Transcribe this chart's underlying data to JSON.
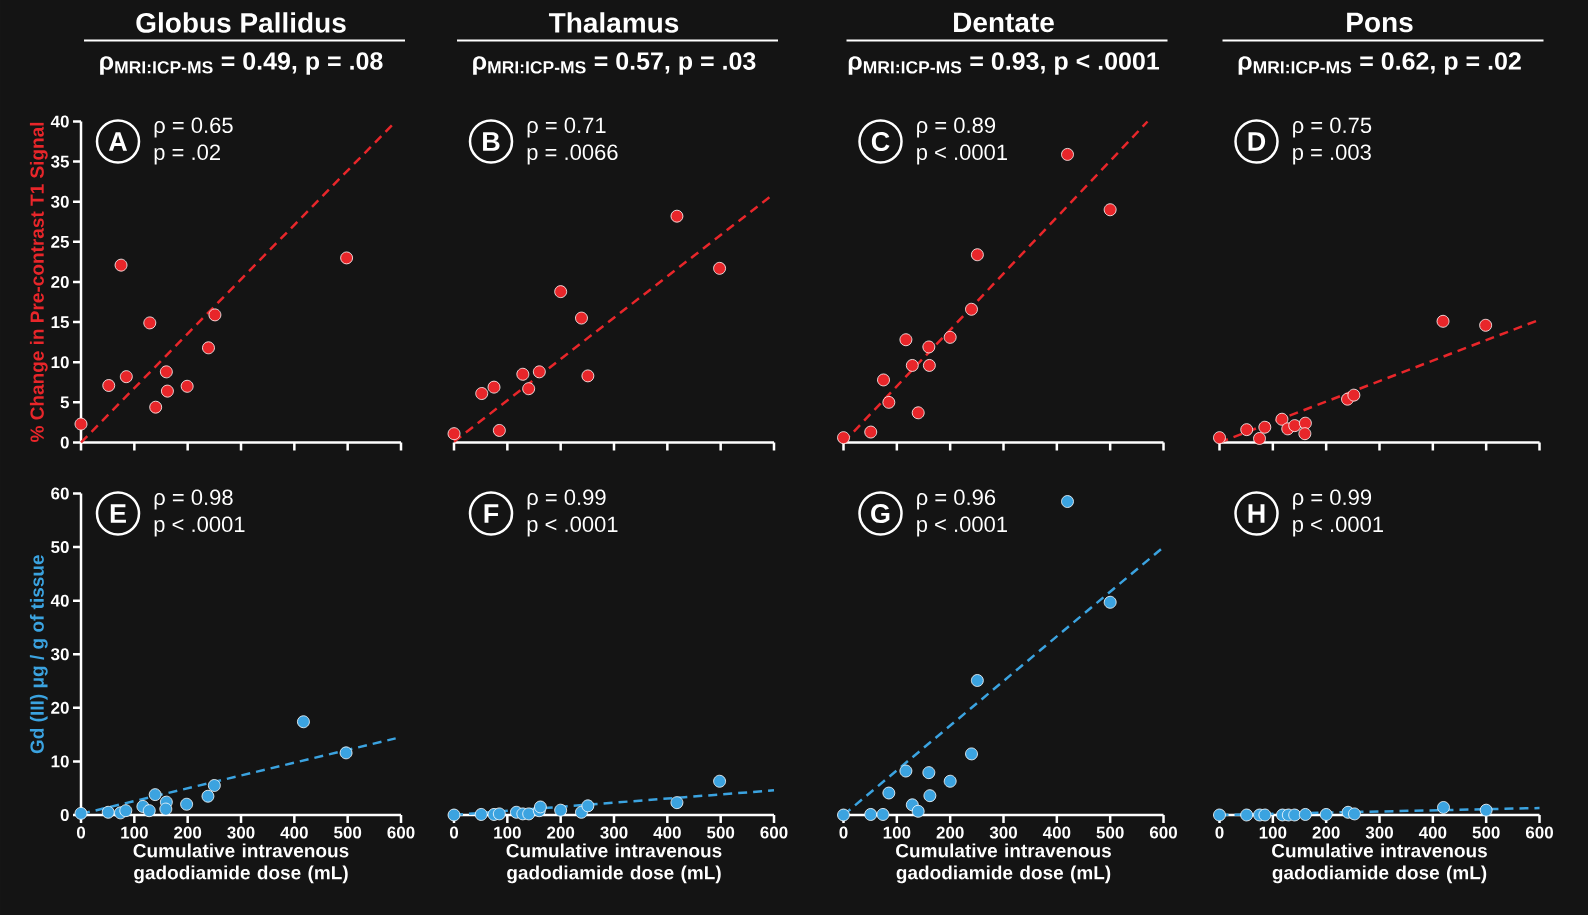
{
  "chart_data": [
    {
      "type": "scatter",
      "title": "Globus Pallidus",
      "subtitle": "ρ$_{MRI:ICP-MS}$ = 0.49, p = .08",
      "ylabel": "% Change in Pre-contrast T1 Signal",
      "annotations": [
        "A",
        "ρ = 0.65",
        "p = .02"
      ],
      "xlim": [
        0,
        600
      ],
      "ylim": [
        0,
        40
      ],
      "xticks": [
        0,
        100,
        200,
        300,
        400,
        500,
        600
      ],
      "yticks": [
        0,
        5,
        10,
        15,
        20,
        25,
        30,
        35,
        40
      ],
      "tick_labels": "y",
      "series": [
        {
          "type": "scatter",
          "marker": "circle",
          "color": "#e8262a",
          "x": [
            0,
            52,
            75,
            85,
            129,
            140,
            160,
            162,
            199,
            239,
            251,
            498
          ],
          "values": [
            2.3,
            7.1,
            22.1,
            8.2,
            14.9,
            4.4,
            8.8,
            6.4,
            7.0,
            11.8,
            15.9,
            23.0
          ]
        },
        {
          "type": "line",
          "line_style": "dashed",
          "color": "#e8262a",
          "x": [
            0,
            590
          ],
          "values": [
            0,
            40
          ]
        }
      ]
    },
    {
      "type": "scatter",
      "title": "Thalamus",
      "subtitle": "ρ$_{MRI:ICP-MS}$ = 0.57, p = .03",
      "annotations": [
        "B",
        "ρ = 0.71",
        "p = .0066"
      ],
      "xlim": [
        0,
        600
      ],
      "ylim": [
        0,
        40
      ],
      "xticks": [
        0,
        100,
        200,
        300,
        400,
        500,
        600
      ],
      "tick_labels": false,
      "series": [
        {
          "type": "scatter",
          "marker": "circle",
          "color": "#e8262a",
          "x": [
            0,
            52,
            75,
            85,
            129,
            140,
            160,
            200,
            239,
            251,
            418,
            498
          ],
          "values": [
            1.1,
            6.1,
            6.9,
            1.5,
            8.5,
            6.7,
            8.8,
            18.8,
            15.5,
            8.3,
            28.2,
            21.7
          ]
        },
        {
          "type": "line",
          "line_style": "dashed",
          "color": "#e8262a",
          "x": [
            0,
            600
          ],
          "values": [
            0.1,
            31
          ]
        }
      ]
    },
    {
      "type": "scatter",
      "title": "Dentate",
      "subtitle": "ρ$_{MRI:ICP-MS}$ = 0.93, p < .0001",
      "annotations": [
        "C",
        "ρ = 0.89",
        "p < .0001"
      ],
      "xlim": [
        0,
        600
      ],
      "ylim": [
        0,
        40
      ],
      "xticks": [
        0,
        100,
        200,
        300,
        400,
        500,
        600
      ],
      "tick_labels": false,
      "series": [
        {
          "type": "scatter",
          "marker": "circle",
          "color": "#e8262a",
          "x": [
            0,
            51,
            75,
            85,
            117,
            129,
            140,
            160,
            161,
            200,
            240,
            251,
            420,
            500
          ],
          "values": [
            0.6,
            1.3,
            7.8,
            5.0,
            12.8,
            9.6,
            3.7,
            11.9,
            9.6,
            13.1,
            16.6,
            23.4,
            35.9,
            29.0
          ]
        },
        {
          "type": "line",
          "line_style": "dashed",
          "color": "#e8262a",
          "x": [
            0,
            570
          ],
          "values": [
            0,
            40
          ]
        }
      ]
    },
    {
      "type": "scatter",
      "title": "Pons",
      "subtitle": "ρ$_{MRI:ICP-MS}$ = 0.62, p = .02",
      "annotations": [
        "D",
        "ρ = 0.75",
        "p = .003"
      ],
      "xlim": [
        0,
        600
      ],
      "ylim": [
        0,
        40
      ],
      "xticks": [
        0,
        100,
        200,
        300,
        400,
        500,
        600
      ],
      "tick_labels": false,
      "series": [
        {
          "type": "scatter",
          "marker": "circle",
          "color": "#e8262a",
          "x": [
            0,
            51,
            75,
            85,
            117,
            128,
            141,
            161,
            160,
            240,
            252,
            419,
            499
          ],
          "values": [
            0.6,
            1.6,
            0.5,
            1.9,
            2.9,
            1.7,
            2.1,
            2.4,
            1.1,
            5.4,
            5.9,
            15.1,
            14.6
          ]
        },
        {
          "type": "line",
          "line_style": "dashed",
          "color": "#e8262a",
          "x": [
            0,
            600
          ],
          "values": [
            0,
            15.3
          ]
        }
      ]
    },
    {
      "type": "scatter",
      "xlabel": "Cumulative intravenous gadodiamide dose (mL)",
      "ylabel": "Gd (III) μg / g of tissue",
      "annotations": [
        "E",
        "ρ = 0.98",
        "p < .0001"
      ],
      "xlim": [
        0,
        600
      ],
      "ylim": [
        0,
        60
      ],
      "xticks": [
        0,
        100,
        200,
        300,
        400,
        500,
        600
      ],
      "yticks": [
        0,
        10,
        20,
        30,
        40,
        50,
        60
      ],
      "series": [
        {
          "type": "scatter",
          "marker": "circle",
          "color": "#3ba3e0",
          "x": [
            0,
            51,
            74,
            84,
            116,
            128,
            139,
            160,
            159,
            198,
            238,
            250,
            417,
            497
          ],
          "values": [
            0.3,
            0.5,
            0.4,
            0.8,
            1.6,
            0.8,
            3.8,
            2.4,
            1.1,
            2.0,
            3.5,
            5.5,
            17.4,
            11.6
          ]
        },
        {
          "type": "line",
          "line_style": "dashed",
          "color": "#3ba3e0",
          "x": [
            0,
            590
          ],
          "values": [
            0.2,
            14.3
          ]
        }
      ]
    },
    {
      "type": "scatter",
      "xlabel": "Cumulative intravenous gadodiamide dose (mL)",
      "annotations": [
        "F",
        "ρ = 0.99",
        "p < .0001"
      ],
      "xlim": [
        0,
        600
      ],
      "ylim": [
        0,
        60
      ],
      "xticks": [
        0,
        100,
        200,
        300,
        400,
        500,
        600
      ],
      "tick_labels": "x",
      "series": [
        {
          "type": "scatter",
          "marker": "circle",
          "color": "#3ba3e0",
          "x": [
            0,
            51,
            75,
            85,
            117,
            129,
            140,
            160,
            162,
            200,
            239,
            251,
            418,
            498
          ],
          "values": [
            0,
            0.1,
            0.1,
            0.2,
            0.5,
            0.2,
            0.2,
            0.8,
            1.5,
            0.9,
            0.5,
            1.7,
            2.3,
            6.3
          ]
        },
        {
          "type": "line",
          "line_style": "dashed",
          "color": "#3ba3e0",
          "x": [
            0,
            600
          ],
          "values": [
            0,
            4.6
          ]
        }
      ]
    },
    {
      "type": "scatter",
      "xlabel": "Cumulative intravenous gadodiamide dose (mL)",
      "annotations": [
        "G",
        "ρ = 0.96",
        "p < .0001"
      ],
      "xlim": [
        0,
        600
      ],
      "ylim": [
        0,
        60
      ],
      "xticks": [
        0,
        100,
        200,
        300,
        400,
        500,
        600
      ],
      "tick_labels": "x",
      "series": [
        {
          "type": "scatter",
          "marker": "circle",
          "color": "#3ba3e0",
          "x": [
            0,
            51,
            74,
            85,
            117,
            129,
            140,
            160,
            162,
            200,
            240,
            251,
            420,
            500
          ],
          "values": [
            0,
            0.1,
            0.1,
            4.1,
            8.2,
            1.9,
            0.7,
            7.9,
            3.6,
            6.3,
            11.4,
            25.1,
            58.5,
            39.7
          ]
        },
        {
          "type": "line",
          "line_style": "dashed",
          "color": "#3ba3e0",
          "x": [
            0,
            600
          ],
          "values": [
            0,
            50
          ]
        }
      ]
    },
    {
      "type": "scatter",
      "xlabel": "Cumulative intravenous gadodiamide dose (mL)",
      "annotations": [
        "H",
        "ρ = 0.99",
        "p < .0001"
      ],
      "xlim": [
        0,
        600
      ],
      "ylim": [
        0,
        60
      ],
      "xticks": [
        0,
        100,
        200,
        300,
        400,
        500,
        600
      ],
      "tick_labels": "x",
      "series": [
        {
          "type": "scatter",
          "marker": "circle",
          "color": "#3ba3e0",
          "x": [
            0,
            51,
            75,
            85,
            118,
            129,
            141,
            161,
            200,
            241,
            253,
            420,
            500
          ],
          "values": [
            0,
            0,
            0,
            0,
            0,
            0,
            0,
            0.1,
            0.1,
            0.5,
            0.2,
            1.4,
            0.9
          ]
        },
        {
          "type": "line",
          "line_style": "dashed",
          "color": "#3ba3e0",
          "x": [
            0,
            600
          ],
          "values": [
            0,
            1.3
          ]
        }
      ]
    }
  ]
}
